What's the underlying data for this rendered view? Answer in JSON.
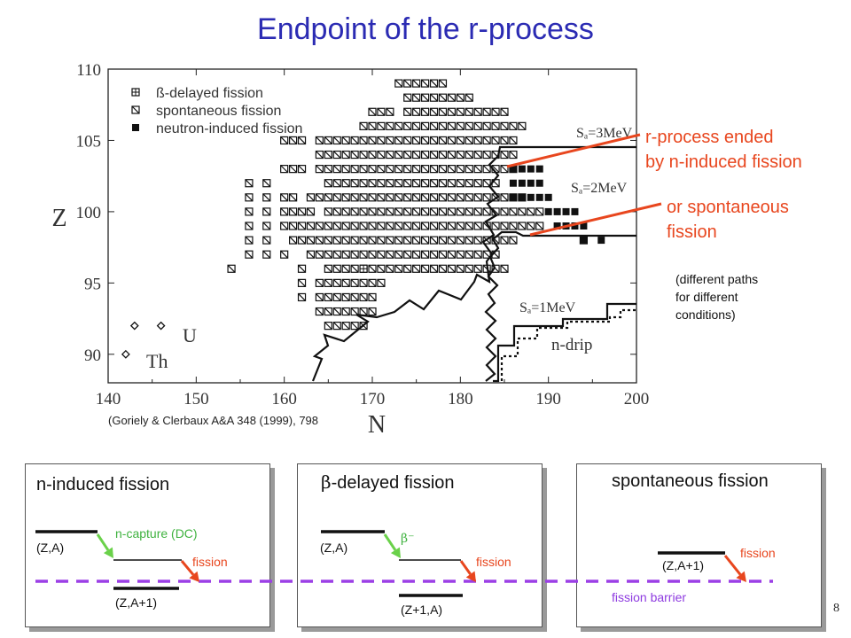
{
  "title": "Endpoint of the r-process",
  "chart_data": {
    "type": "scatter",
    "xlabel": "N",
    "ylabel": "Z",
    "xlim": [
      140,
      200
    ],
    "ylim": [
      88,
      110
    ],
    "x_ticks": [
      "140",
      "150",
      "160",
      "170",
      "180",
      "190",
      "200"
    ],
    "y_ticks": [
      "90",
      "95",
      "100",
      "105",
      "110"
    ],
    "legend_placement": "top-left",
    "legend": [
      "ß-delayed  fission",
      "spontaneous  fission",
      "neutron-induced  fission"
    ],
    "series": [
      {
        "name": "ß-delayed  fission",
        "points": [
          [
            169,
            96
          ],
          [
            194,
            98
          ]
        ]
      },
      {
        "name": "spontaneous  fission",
        "points": [
          [
            154,
            96
          ],
          [
            156,
            101
          ],
          [
            158,
            101
          ],
          [
            156,
            102
          ],
          [
            158,
            102
          ],
          [
            156,
            100
          ],
          [
            158,
            100
          ],
          [
            160,
            100
          ],
          [
            161,
            100
          ],
          [
            162,
            100
          ],
          [
            163,
            100
          ],
          [
            156,
            99
          ],
          [
            158,
            99
          ],
          [
            160,
            99
          ],
          [
            161,
            99
          ],
          [
            156,
            98
          ],
          [
            158,
            98
          ],
          [
            156,
            97
          ],
          [
            158,
            97
          ],
          [
            160,
            97
          ],
          [
            162,
            96
          ],
          [
            162,
            95
          ],
          [
            162,
            94
          ]
        ]
      },
      {
        "name": "neutron-induced  fission",
        "points": [
          [
            186,
            103
          ],
          [
            187,
            103
          ],
          [
            188,
            103
          ],
          [
            189,
            103
          ],
          [
            186,
            102
          ],
          [
            187,
            102
          ],
          [
            188,
            102
          ],
          [
            189,
            102
          ],
          [
            186,
            101
          ],
          [
            187,
            101
          ],
          [
            188,
            101
          ],
          [
            189,
            101
          ],
          [
            190,
            101
          ],
          [
            190,
            100
          ],
          [
            191,
            100
          ],
          [
            192,
            100
          ],
          [
            193,
            100
          ],
          [
            191,
            99
          ],
          [
            192,
            99
          ],
          [
            193,
            99
          ],
          [
            194,
            99
          ],
          [
            194,
            98
          ],
          [
            196,
            98
          ]
        ]
      }
    ],
    "isotope_labels": [
      "U",
      "Th"
    ],
    "isotope_points": [
      [
        143,
        92
      ],
      [
        146,
        92
      ],
      [
        142,
        90
      ]
    ],
    "curve_labels": [
      "Sₐ=3MeV",
      "Sₐ=2MeV",
      "Sₐ=1MeV",
      "n-drip"
    ]
  },
  "annotations": {
    "ended": [
      "r-process ended",
      "by n-induced fission"
    ],
    "spontaneous": [
      "or spontaneous",
      "fission"
    ],
    "note": "(different paths\nfor different\nconditions)"
  },
  "citation": "(Goriely & Clerbaux A&A 348 (1999), 798",
  "panels": {
    "n_induced": {
      "title": "n-induced fission",
      "initial": "(Z,A)",
      "final": "(Z,A+1)",
      "arrow_label": "n-capture (DC)",
      "fission": "fission"
    },
    "beta_delayed": {
      "title_symbol": "β",
      "title_rest": "-delayed fission",
      "initial": "(Z,A)",
      "final": "(Z+1,A)",
      "arrow_label": "β⁻",
      "fission": "fission"
    },
    "spontaneous": {
      "title": "spontaneous fission",
      "level": "(Z,A+1)",
      "fission": "fission",
      "barrier": "fission barrier"
    }
  },
  "page_number": "8",
  "colors": {
    "title": "#2b2bb3",
    "annotation": "#e8461e",
    "arrow_green": "#6ad14a",
    "barrier": "#9b3fe6"
  }
}
